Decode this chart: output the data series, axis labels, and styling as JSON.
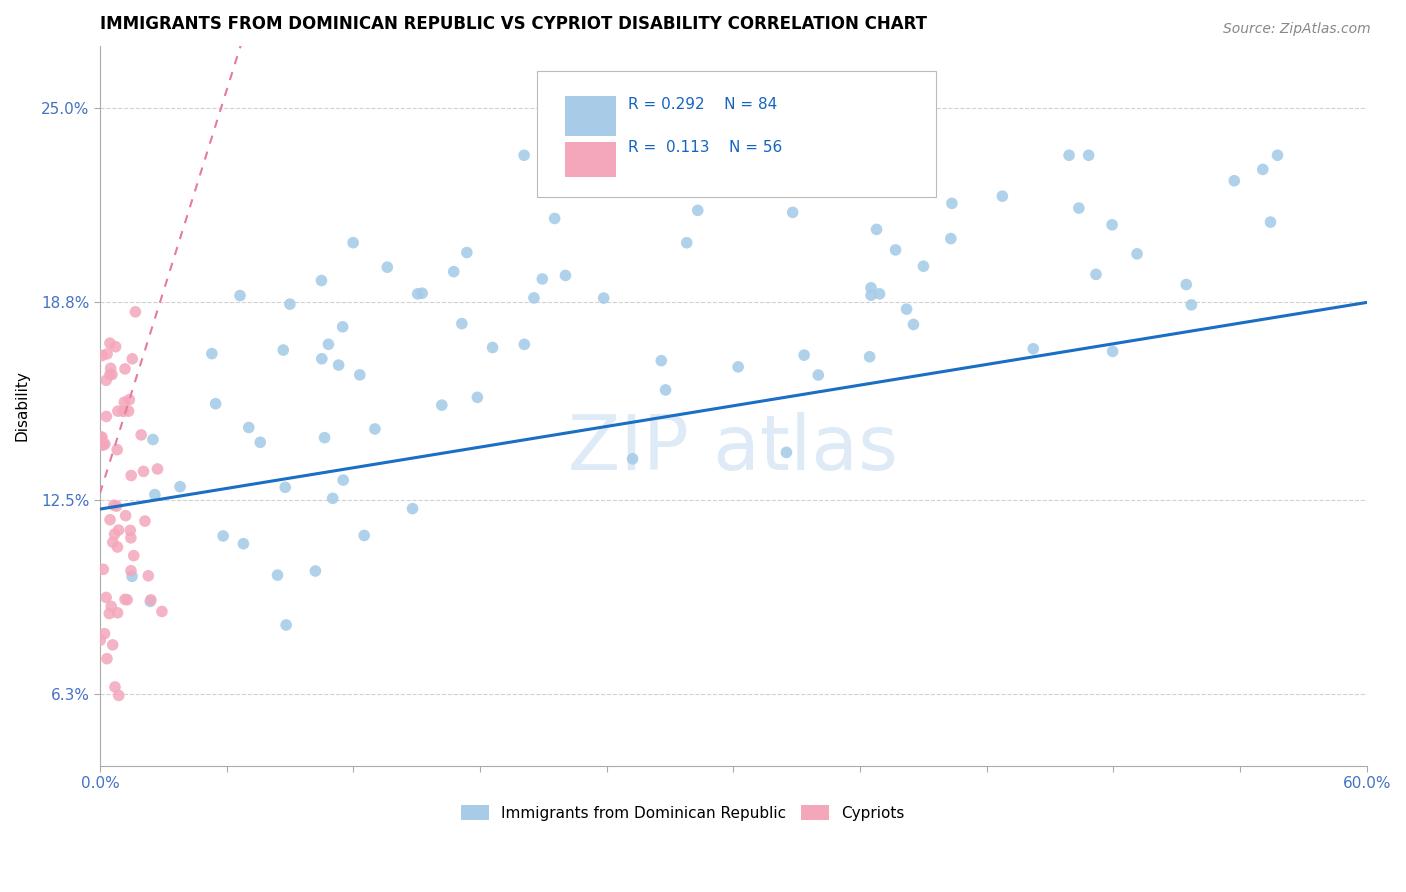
{
  "title": "IMMIGRANTS FROM DOMINICAN REPUBLIC VS CYPRIOT DISABILITY CORRELATION CHART",
  "source": "Source: ZipAtlas.com",
  "ylabel": "Disability",
  "xlim": [
    0.0,
    0.6
  ],
  "ylim": [
    0.04,
    0.27
  ],
  "xtick_positions": [
    0.0,
    0.06,
    0.12,
    0.18,
    0.24,
    0.3,
    0.36,
    0.42,
    0.48,
    0.54,
    0.6
  ],
  "xticklabels": [
    "0.0%",
    "",
    "",
    "",
    "",
    "",
    "",
    "",
    "",
    "",
    "60.0%"
  ],
  "ytick_positions": [
    0.063,
    0.125,
    0.188,
    0.25
  ],
  "yticklabels": [
    "6.3%",
    "12.5%",
    "18.8%",
    "25.0%"
  ],
  "blue_R": 0.292,
  "blue_N": 84,
  "pink_R": 0.113,
  "pink_N": 56,
  "blue_color": "#a8cce8",
  "pink_color": "#f4a7bb",
  "blue_trend_color": "#1a6fc4",
  "pink_trend_color": "#e87a9a",
  "blue_label": "Immigrants from Dominican Republic",
  "pink_label": "Cypriots",
  "legend_text_color": "#1565C0",
  "tick_color": "#4472C4",
  "watermark_color": "#c8dff0",
  "watermark_text": "ZIPatlas",
  "title_fontsize": 12,
  "source_fontsize": 10,
  "axis_label_fontsize": 11,
  "legend_fontsize": 11
}
